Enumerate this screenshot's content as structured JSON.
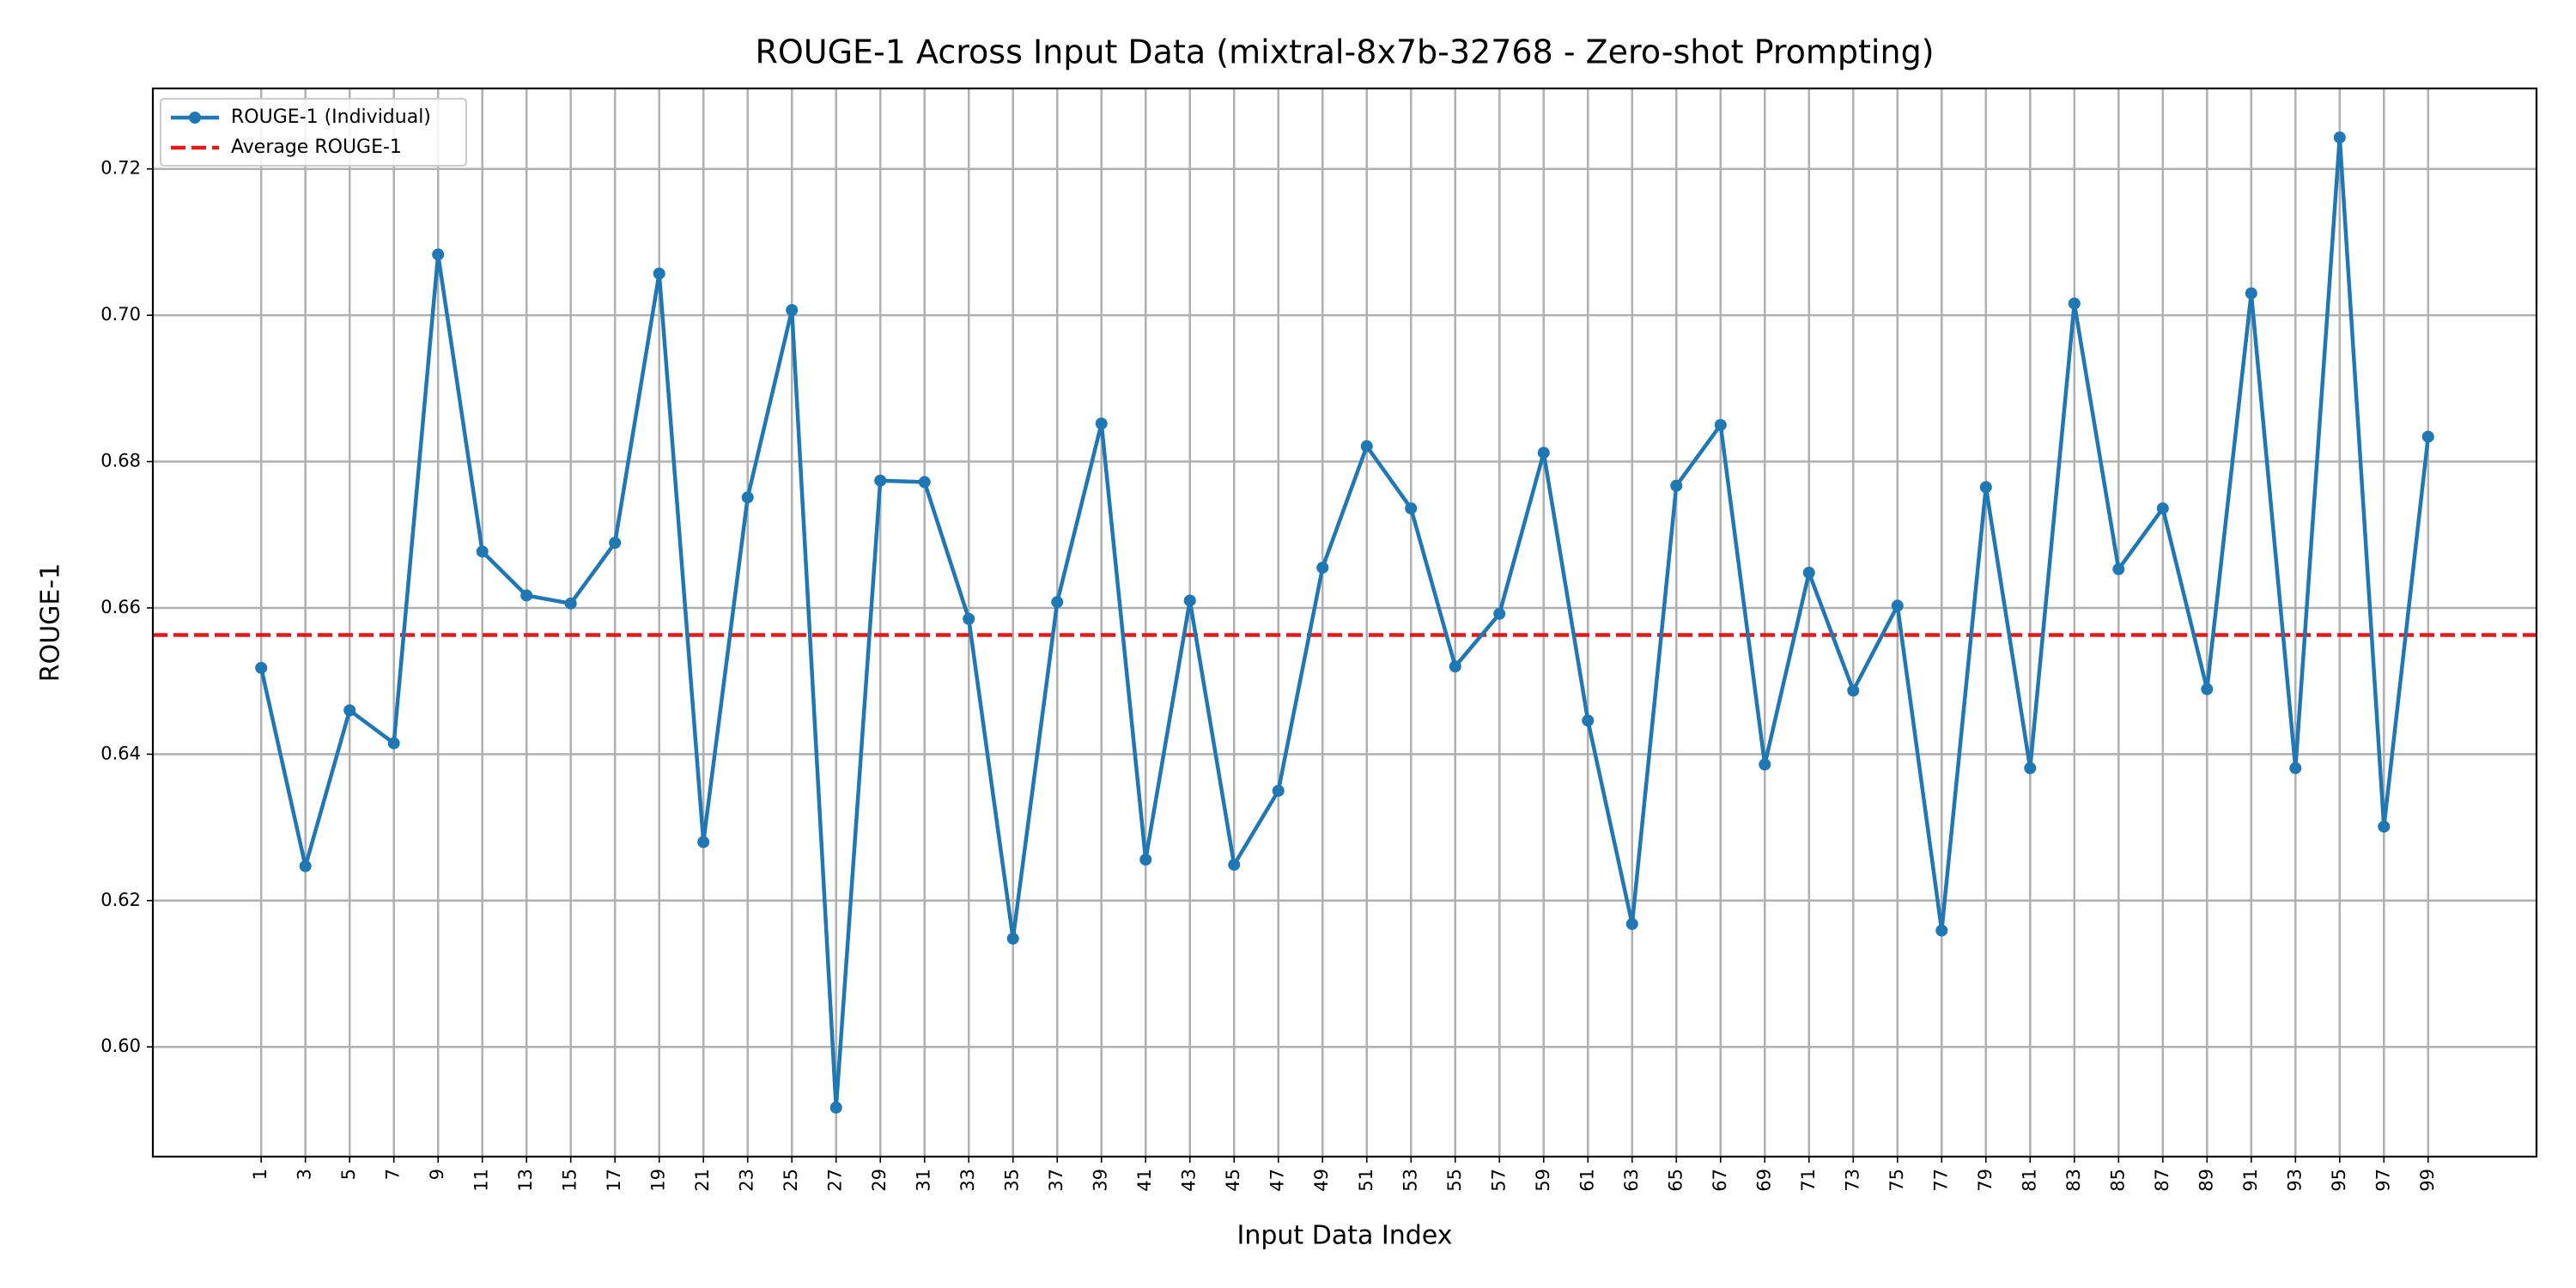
{
  "chart_data": {
    "type": "line",
    "title": "ROUGE-1 Across Input Data (mixtral-8x7b-32768 - Zero-shot Prompting)",
    "xlabel": "Input Data Index",
    "ylabel": "ROUGE-1",
    "x": [
      1,
      3,
      5,
      7,
      9,
      11,
      13,
      15,
      17,
      19,
      21,
      23,
      25,
      27,
      29,
      31,
      33,
      35,
      37,
      39,
      41,
      43,
      45,
      47,
      49,
      51,
      53,
      55,
      57,
      59,
      61,
      63,
      65,
      67,
      69,
      71,
      73,
      75,
      77,
      79,
      81,
      83,
      85,
      87,
      89,
      91,
      93,
      95,
      97,
      99
    ],
    "series": [
      {
        "name": "ROUGE-1 (Individual)",
        "color": "#1f77b4",
        "values": [
          0.6518,
          0.6247,
          0.646,
          0.6415,
          0.7083,
          0.6677,
          0.6617,
          0.6606,
          0.6689,
          0.7057,
          0.628,
          0.6751,
          0.7007,
          0.5917,
          0.6774,
          0.6772,
          0.6585,
          0.6148,
          0.6608,
          0.6852,
          0.6256,
          0.661,
          0.6249,
          0.635,
          0.6655,
          0.6821,
          0.6736,
          0.652,
          0.6592,
          0.6812,
          0.6446,
          0.6168,
          0.6767,
          0.685,
          0.6386,
          0.6648,
          0.6487,
          0.6603,
          0.6159,
          0.6765,
          0.6381,
          0.7016,
          0.6653,
          0.6736,
          0.6489,
          0.703,
          0.6381,
          0.7243,
          0.6301,
          0.6834
        ]
      }
    ],
    "hlines": [
      {
        "name": "Average ROUGE-1",
        "color": "#e31a1c",
        "value": 0.6563
      }
    ],
    "xlim": [
      -3.9,
      103.9
    ],
    "xticks": [
      1,
      3,
      5,
      7,
      9,
      11,
      13,
      15,
      17,
      19,
      21,
      23,
      25,
      27,
      29,
      31,
      33,
      35,
      37,
      39,
      41,
      43,
      45,
      47,
      49,
      51,
      53,
      55,
      57,
      59,
      61,
      63,
      65,
      67,
      69,
      71,
      73,
      75,
      77,
      79,
      81,
      83,
      85,
      87,
      89,
      91,
      93,
      95,
      97,
      99
    ],
    "ylim": [
      0.585,
      0.731
    ],
    "yticks": [
      {
        "value": 0.6,
        "label": "0.60"
      },
      0.62,
      0.64,
      0.66,
      0.68,
      {
        "value": 0.7,
        "label": "0.70"
      },
      0.72
    ],
    "grid": true,
    "legend": "upper left"
  }
}
